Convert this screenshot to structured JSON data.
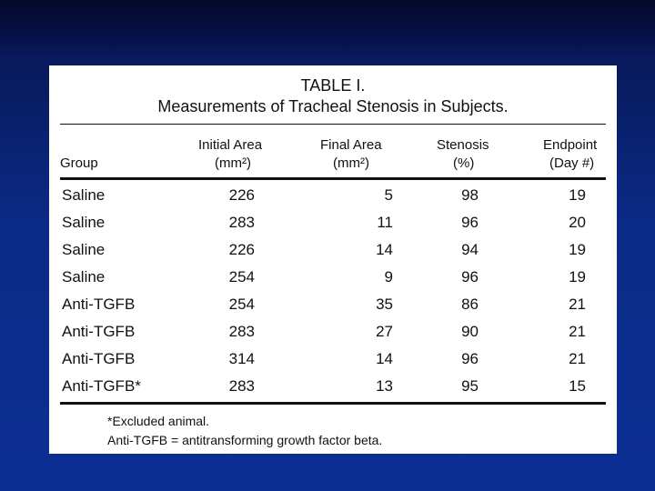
{
  "table": {
    "title": "TABLE I.",
    "subtitle": "Measurements of Tracheal Stenosis in Subjects.",
    "headers": {
      "group": "Group",
      "initial_l1": "Initial Area",
      "initial_l2": "(mm²)",
      "final_l1": "Final Area",
      "final_l2": "(mm²)",
      "stenosis_l1": "Stenosis",
      "stenosis_l2": "(%)",
      "endpoint_l1": "Endpoint",
      "endpoint_l2": "(Day #)"
    },
    "rows": [
      {
        "group": "Saline",
        "initial": "226",
        "final": "5",
        "stenosis": "98",
        "endpoint": "19"
      },
      {
        "group": "Saline",
        "initial": "283",
        "final": "11",
        "stenosis": "96",
        "endpoint": "20"
      },
      {
        "group": "Saline",
        "initial": "226",
        "final": "14",
        "stenosis": "94",
        "endpoint": "19"
      },
      {
        "group": "Saline",
        "initial": "254",
        "final": "9",
        "stenosis": "96",
        "endpoint": "19"
      },
      {
        "group": "Anti-TGFB",
        "initial": "254",
        "final": "35",
        "stenosis": "86",
        "endpoint": "21"
      },
      {
        "group": "Anti-TGFB",
        "initial": "283",
        "final": "27",
        "stenosis": "90",
        "endpoint": "21"
      },
      {
        "group": "Anti-TGFB",
        "initial": "314",
        "final": "14",
        "stenosis": "96",
        "endpoint": "21"
      },
      {
        "group": "Anti-TGFB*",
        "initial": "283",
        "final": "13",
        "stenosis": "95",
        "endpoint": "15"
      }
    ],
    "footnotes": [
      "*Excluded animal.",
      "Anti-TGFB = antitransforming growth factor beta."
    ]
  }
}
